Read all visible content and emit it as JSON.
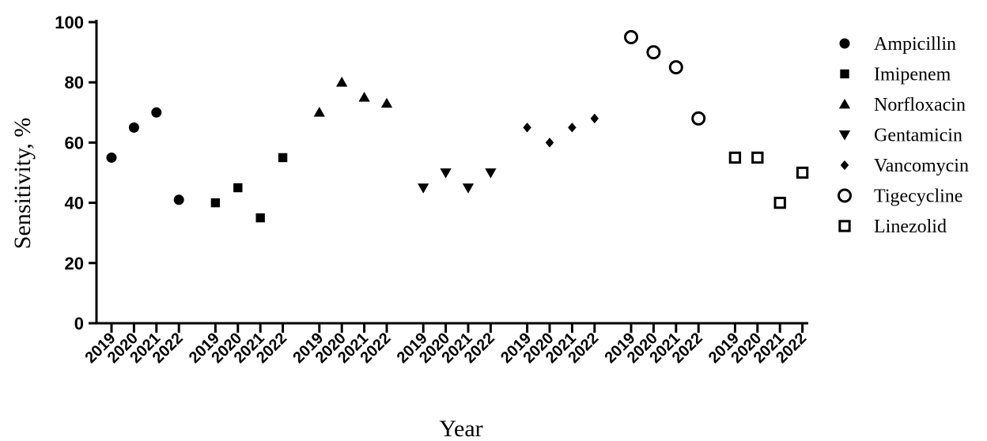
{
  "chart_data": {
    "type": "scatter",
    "xlabel": "Year",
    "ylabel": "Sensitivity, %",
    "ylim": [
      0,
      100
    ],
    "yticks": [
      0,
      20,
      40,
      60,
      80,
      100
    ],
    "years": [
      "2019",
      "2020",
      "2021",
      "2022"
    ],
    "grid": false,
    "legend_position": "right",
    "series": [
      {
        "name": "Ampicillin",
        "marker": "filled-circle",
        "values": [
          55,
          65,
          70,
          41
        ]
      },
      {
        "name": "Imipenem",
        "marker": "filled-square",
        "values": [
          40,
          45,
          35,
          55
        ]
      },
      {
        "name": "Norfloxacin",
        "marker": "filled-triangle-up",
        "values": [
          70,
          80,
          75,
          73
        ]
      },
      {
        "name": "Gentamicin",
        "marker": "filled-triangle-down",
        "values": [
          45,
          50,
          45,
          50
        ]
      },
      {
        "name": "Vancomycin",
        "marker": "filled-diamond",
        "values": [
          65,
          60,
          65,
          68
        ]
      },
      {
        "name": "Tigecycline",
        "marker": "open-circle",
        "values": [
          95,
          90,
          85,
          68
        ]
      },
      {
        "name": "Linezolid",
        "marker": "open-square",
        "values": [
          55,
          55,
          40,
          50
        ]
      }
    ]
  },
  "colors": {
    "ink": "#000000",
    "background": "#ffffff"
  }
}
